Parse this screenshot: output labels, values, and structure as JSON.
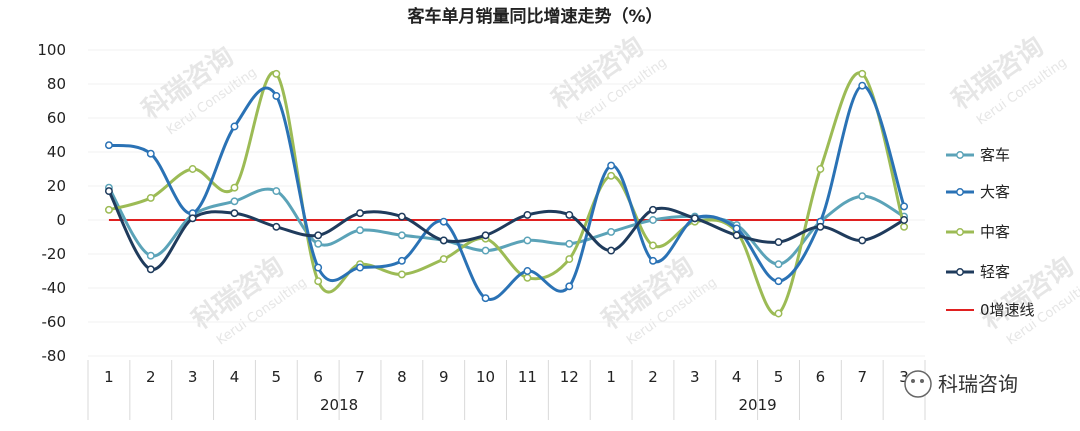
{
  "chart_data": {
    "type": "line",
    "title": "客车单月销量同比增速走势（%）",
    "categories": [
      "1",
      "2",
      "3",
      "4",
      "5",
      "6",
      "7",
      "8",
      "9",
      "10",
      "11",
      "12",
      "1",
      "2",
      "3",
      "4",
      "5",
      "6",
      "7",
      "3"
    ],
    "year_labels": [
      "2018",
      "2019"
    ],
    "ylim": [
      -80,
      100
    ],
    "yticks": [
      100,
      80,
      60,
      40,
      20,
      0,
      -20,
      -40,
      -60,
      -80
    ],
    "grid": true,
    "legend_position": "right",
    "series": [
      {
        "name": "客车",
        "color": "#5ba3b8",
        "values": [
          19,
          -21,
          3,
          11,
          17,
          -14,
          -6,
          -9,
          -12,
          -18,
          -12,
          -14,
          -7,
          0,
          2,
          -3,
          -26,
          -1,
          14,
          2
        ]
      },
      {
        "name": "大客",
        "color": "#2a72b5",
        "values": [
          44,
          39,
          4,
          55,
          73,
          -28,
          -28,
          -24,
          -1,
          -46,
          -30,
          -39,
          32,
          -24,
          1,
          -5,
          -36,
          -1,
          79,
          8
        ]
      },
      {
        "name": "中客",
        "color": "#9cbb55",
        "values": [
          6,
          13,
          30,
          19,
          86,
          -36,
          -26,
          -32,
          -23,
          -11,
          -34,
          -23,
          26,
          -15,
          -1,
          -7,
          -55,
          30,
          86,
          -4
        ]
      },
      {
        "name": "轻客",
        "color": "#1f3b5c",
        "values": [
          17,
          -29,
          1,
          4,
          -4,
          -9,
          4,
          2,
          -12,
          -9,
          3,
          3,
          -18,
          6,
          1,
          -9,
          -13,
          -4,
          -12,
          0
        ]
      },
      {
        "name": "0增速线",
        "color": "#e02020",
        "values": [
          0,
          0,
          0,
          0,
          0,
          0,
          0,
          0,
          0,
          0,
          0,
          0,
          0,
          0,
          0,
          0,
          0,
          0,
          0,
          0
        ],
        "markers": false
      }
    ]
  },
  "watermark": {
    "brand": "科瑞咨询",
    "sub": "Kerui Consulting"
  },
  "badge": {
    "text": "科瑞咨询",
    "icon": "wechat-icon"
  }
}
